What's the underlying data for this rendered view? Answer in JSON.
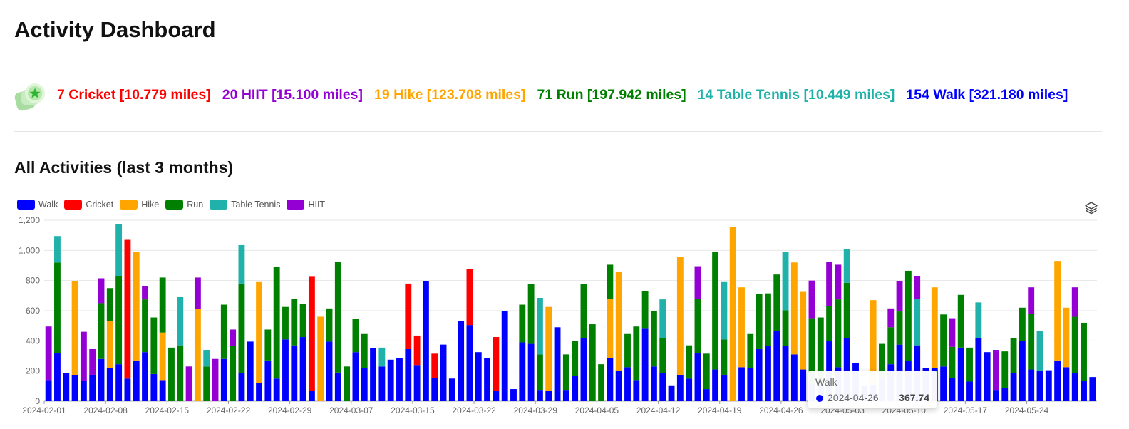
{
  "page": {
    "title": "Activity Dashboard"
  },
  "summary": {
    "items": [
      {
        "text": "7 Cricket [10.779 miles]",
        "color": "#ff0000"
      },
      {
        "text": "20 HIIT [15.100 miles]",
        "color": "#9400d3"
      },
      {
        "text": "19 Hike [123.708 miles]",
        "color": "#ffa500"
      },
      {
        "text": "71 Run [197.942 miles]",
        "color": "#008000"
      },
      {
        "text": "14 Table Tennis [10.449 miles]",
        "color": "#20b2aa"
      },
      {
        "text": "154 Walk [321.180 miles]",
        "color": "#0000ff"
      }
    ]
  },
  "section": {
    "title": "All Activities (last 3 months)"
  },
  "legend": [
    {
      "label": "Walk",
      "color": "#0000ff"
    },
    {
      "label": "Cricket",
      "color": "#ff0000"
    },
    {
      "label": "Hike",
      "color": "#ffa500"
    },
    {
      "label": "Run",
      "color": "#008000"
    },
    {
      "label": "Table Tennis",
      "color": "#20b2aa"
    },
    {
      "label": "HIIT",
      "color": "#9400d3"
    }
  ],
  "tooltip": {
    "series": "Walk",
    "date": "2024-04-26",
    "value": "367.74"
  },
  "chart_data": {
    "type": "bar",
    "stacked": true,
    "ylim": [
      0,
      1200
    ],
    "yticks": [
      0,
      200,
      400,
      600,
      800,
      1000,
      1200
    ],
    "ytick_labels": [
      "0",
      "200",
      "400",
      "600",
      "800",
      "1,000",
      "1,200"
    ],
    "xtick_labels": [
      "2024-02-01",
      "2024-02-08",
      "2024-02-15",
      "2024-02-22",
      "2024-02-29",
      "2024-03-07",
      "2024-03-15",
      "2024-03-22",
      "2024-03-29",
      "2024-04-05",
      "2024-04-12",
      "2024-04-19",
      "2024-04-26",
      "2024-05-03",
      "2024-05-10",
      "2024-05-17",
      "2024-05-24"
    ],
    "grid": true,
    "legend_position": "top-left",
    "series_order": [
      "Walk",
      "Cricket",
      "Hike",
      "Run",
      "Table Tennis",
      "HIIT"
    ],
    "colors": {
      "Walk": "#0000ff",
      "Cricket": "#ff0000",
      "Hike": "#ffa500",
      "Run": "#008000",
      "Table Tennis": "#20b2aa",
      "HIIT": "#9400d3"
    },
    "days": [
      {
        "Walk": 140,
        "HIIT": 355
      },
      {
        "Walk": 320,
        "Run": 600,
        "Table Tennis": 175
      },
      {
        "Walk": 185
      },
      {
        "Walk": 175,
        "Hike": 620
      },
      {
        "Walk": 135,
        "HIIT": 325
      },
      {
        "Walk": 175,
        "HIIT": 170
      },
      {
        "Walk": 280,
        "Run": 370,
        "HIIT": 165
      },
      {
        "Walk": 220,
        "Hike": 310,
        "Run": 220
      },
      {
        "Walk": 245,
        "Run": 585,
        "Table Tennis": 345
      },
      {
        "Walk": 150,
        "Cricket": 920
      },
      {
        "Walk": 270,
        "Hike": 720
      },
      {
        "Walk": 325,
        "Run": 350,
        "HIIT": 90
      },
      {
        "Walk": 180,
        "Run": 375
      },
      {
        "Walk": 140,
        "Hike": 315,
        "Run": 365
      },
      {
        "Run": 355
      },
      {
        "Run": 370,
        "Table Tennis": 320
      },
      {
        "HIIT": 230
      },
      {
        "Hike": 610,
        "HIIT": 210
      },
      {
        "Run": 230,
        "Table Tennis": 110
      },
      {
        "HIIT": 280
      },
      {
        "Walk": 280,
        "Run": 360
      },
      {
        "Run": 365,
        "HIIT": 110
      },
      {
        "Walk": 185,
        "Run": 595,
        "Table Tennis": 255
      },
      {
        "Walk": 395
      },
      {
        "Walk": 120,
        "Hike": 670
      },
      {
        "Walk": 270,
        "Run": 205
      },
      {
        "Walk": 150,
        "Run": 740
      },
      {
        "Walk": 410,
        "Run": 215
      },
      {
        "Walk": 370,
        "Run": 310
      },
      {
        "Walk": 425,
        "Run": 220
      },
      {
        "Walk": 70,
        "Cricket": 755
      },
      {
        "Hike": 560
      },
      {
        "Walk": 395,
        "Run": 220
      },
      {
        "Walk": 190,
        "Run": 735
      },
      {
        "Run": 230
      },
      {
        "Walk": 325,
        "Run": 220
      },
      {
        "Walk": 220,
        "Run": 230
      },
      {
        "Walk": 350
      },
      {
        "Walk": 230,
        "Table Tennis": 125
      },
      {
        "Walk": 275
      },
      {
        "Walk": 285
      },
      {
        "Walk": 345,
        "Cricket": 435
      },
      {
        "Walk": 240,
        "Cricket": 195
      },
      {
        "Walk": 795
      },
      {
        "Walk": 155,
        "Cricket": 160
      },
      {
        "Walk": 375
      },
      {
        "Walk": 150
      },
      {
        "Walk": 530
      },
      {
        "Walk": 505,
        "Cricket": 370
      },
      {
        "Walk": 325
      },
      {
        "Walk": 285
      },
      {
        "Walk": 70,
        "Cricket": 355
      },
      {
        "Walk": 600
      },
      {
        "Walk": 80
      },
      {
        "Walk": 390,
        "Run": 250
      },
      {
        "Walk": 380,
        "Run": 395
      },
      {
        "Walk": 75,
        "Run": 235,
        "Table Tennis": 375
      },
      {
        "Walk": 70,
        "Hike": 555
      },
      {
        "Walk": 490
      },
      {
        "Walk": 75,
        "Run": 235
      },
      {
        "Walk": 170,
        "Run": 230
      },
      {
        "Walk": 420,
        "Run": 355
      },
      {
        "Run": 510
      },
      {
        "Run": 245
      },
      {
        "Walk": 285,
        "Hike": 395,
        "Run": 225
      },
      {
        "Walk": 200,
        "Hike": 660
      },
      {
        "Walk": 225,
        "Run": 225
      },
      {
        "Walk": 140,
        "Run": 355
      },
      {
        "Walk": 485,
        "Run": 245
      },
      {
        "Walk": 230,
        "Run": 370
      },
      {
        "Walk": 185,
        "Run": 235,
        "Table Tennis": 255
      },
      {
        "Walk": 105
      },
      {
        "Walk": 175,
        "Hike": 780
      },
      {
        "Walk": 150,
        "Run": 220
      },
      {
        "Walk": 320,
        "Run": 360,
        "HIIT": 215
      },
      {
        "Walk": 80,
        "Run": 235
      },
      {
        "Walk": 210,
        "Run": 780
      },
      {
        "Walk": 175,
        "Run": 235,
        "Table Tennis": 380
      },
      {
        "Hike": 1155
      },
      {
        "Walk": 225,
        "Hike": 530
      },
      {
        "Walk": 220,
        "Run": 230
      },
      {
        "Walk": 345,
        "Run": 365
      },
      {
        "Walk": 365,
        "Run": 350
      },
      {
        "Walk": 465,
        "Run": 375
      },
      {
        "Walk": 367.74,
        "Run": 235,
        "Table Tennis": 385
      },
      {
        "Walk": 310,
        "Hike": 610
      },
      {
        "Walk": 210,
        "Hike": 515
      },
      {
        "Walk": 115,
        "Run": 435,
        "HIIT": 250
      },
      {
        "Walk": 120,
        "Run": 435
      },
      {
        "Walk": 400,
        "Run": 230,
        "HIIT": 295
      },
      {
        "Walk": 225,
        "Run": 450,
        "HIIT": 230
      },
      {
        "Walk": 420,
        "Run": 365,
        "Table Tennis": 225
      },
      {
        "Walk": 255
      },
      {
        "Walk": 100
      },
      {
        "Walk": 110,
        "Hike": 560
      },
      {
        "Walk": 150,
        "Run": 230
      },
      {
        "Walk": 245,
        "Run": 245,
        "HIIT": 125
      },
      {
        "Walk": 375,
        "Run": 220,
        "HIIT": 200
      },
      {
        "Walk": 265,
        "Run": 600
      },
      {
        "Walk": 370,
        "Table Tennis": 310,
        "HIIT": 150
      },
      {
        "Walk": 220
      },
      {
        "Walk": 220,
        "Hike": 535
      },
      {
        "Walk": 230,
        "Run": 345
      },
      {
        "Walk": 155,
        "Run": 205,
        "HIIT": 190
      },
      {
        "Walk": 355,
        "Run": 350
      },
      {
        "Walk": 130,
        "Run": 225
      },
      {
        "Walk": 420,
        "Table Tennis": 235
      },
      {
        "Walk": 325
      },
      {
        "Walk": 75,
        "HIIT": 265
      },
      {
        "Walk": 85,
        "Run": 245
      },
      {
        "Walk": 185,
        "Run": 235
      },
      {
        "Walk": 400,
        "Run": 220
      },
      {
        "Walk": 210,
        "Run": 370,
        "HIIT": 175
      },
      {
        "Walk": 200,
        "Table Tennis": 265
      },
      {
        "Walk": 205
      },
      {
        "Walk": 270,
        "Hike": 660
      },
      {
        "Walk": 225,
        "Hike": 395
      },
      {
        "Walk": 185,
        "Run": 375,
        "HIIT": 195
      },
      {
        "Walk": 135,
        "Run": 385
      },
      {
        "Walk": 160
      }
    ]
  }
}
